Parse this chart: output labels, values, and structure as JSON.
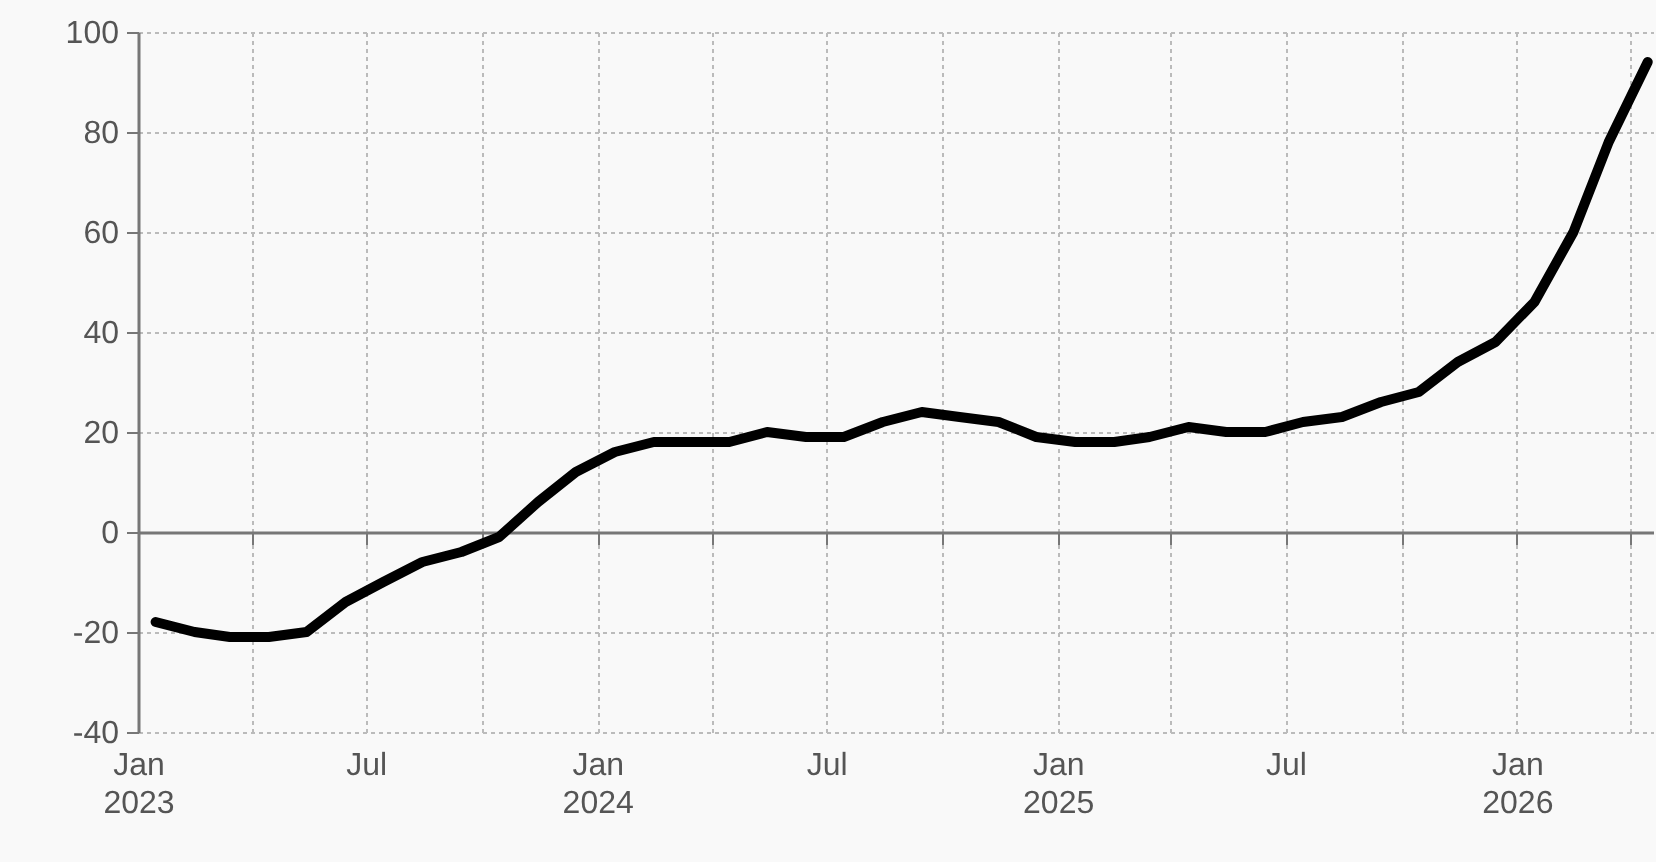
{
  "chart_data": {
    "type": "line",
    "x": [
      "2023-01-15",
      "2023-02-15",
      "2023-03-15",
      "2023-04-15",
      "2023-05-15",
      "2023-06-15",
      "2023-07-15",
      "2023-08-15",
      "2023-09-15",
      "2023-10-15",
      "2023-11-15",
      "2023-12-15",
      "2024-01-15",
      "2024-02-15",
      "2024-03-15",
      "2024-04-15",
      "2024-05-15",
      "2024-06-15",
      "2024-07-15",
      "2024-08-15",
      "2024-09-15",
      "2024-10-15",
      "2024-11-15",
      "2024-12-15",
      "2025-01-15",
      "2025-02-15",
      "2025-03-15",
      "2025-04-15",
      "2025-05-15",
      "2025-06-15",
      "2025-07-15",
      "2025-08-15",
      "2025-09-15",
      "2025-10-15",
      "2025-11-15",
      "2025-12-15",
      "2026-01-15",
      "2026-02-15",
      "2026-03-15",
      "2026-04-15"
    ],
    "series": [
      {
        "color": "#000000",
        "values": [
          -18,
          -20,
          -21,
          -21,
          -20,
          -14,
          -10,
          -6,
          -4,
          -1,
          6,
          12,
          16,
          18,
          18,
          18,
          20,
          19,
          19,
          22,
          24,
          23,
          22,
          19,
          18,
          18,
          19,
          21,
          20,
          20,
          22,
          23,
          26,
          28,
          34,
          38,
          46,
          60,
          78,
          94
        ]
      }
    ],
    "xlim": [
      "2023-01-01",
      "2026-04-20"
    ],
    "xticks": [
      {
        "value": "2023-01-01",
        "label": "Jan\n2023"
      },
      {
        "value": "2023-04-01",
        "label": null
      },
      {
        "value": "2023-07-01",
        "label": "Jul"
      },
      {
        "value": "2023-10-01",
        "label": null
      },
      {
        "value": "2024-01-01",
        "label": "Jan\n2024"
      },
      {
        "value": "2024-04-01",
        "label": null
      },
      {
        "value": "2024-07-01",
        "label": "Jul"
      },
      {
        "value": "2024-10-01",
        "label": null
      },
      {
        "value": "2025-01-01",
        "label": "Jan\n2025"
      },
      {
        "value": "2025-04-01",
        "label": null
      },
      {
        "value": "2025-07-01",
        "label": "Jul"
      },
      {
        "value": "2025-10-01",
        "label": null
      },
      {
        "value": "2026-01-01",
        "label": "Jan\n2026"
      },
      {
        "value": "2026-04-01",
        "label": null
      }
    ],
    "ylim": [
      -40,
      100
    ],
    "yticks": [
      -40,
      -20,
      0,
      20,
      40,
      60,
      80,
      100
    ],
    "grid": true,
    "line_style": "solid",
    "marker": "none"
  }
}
